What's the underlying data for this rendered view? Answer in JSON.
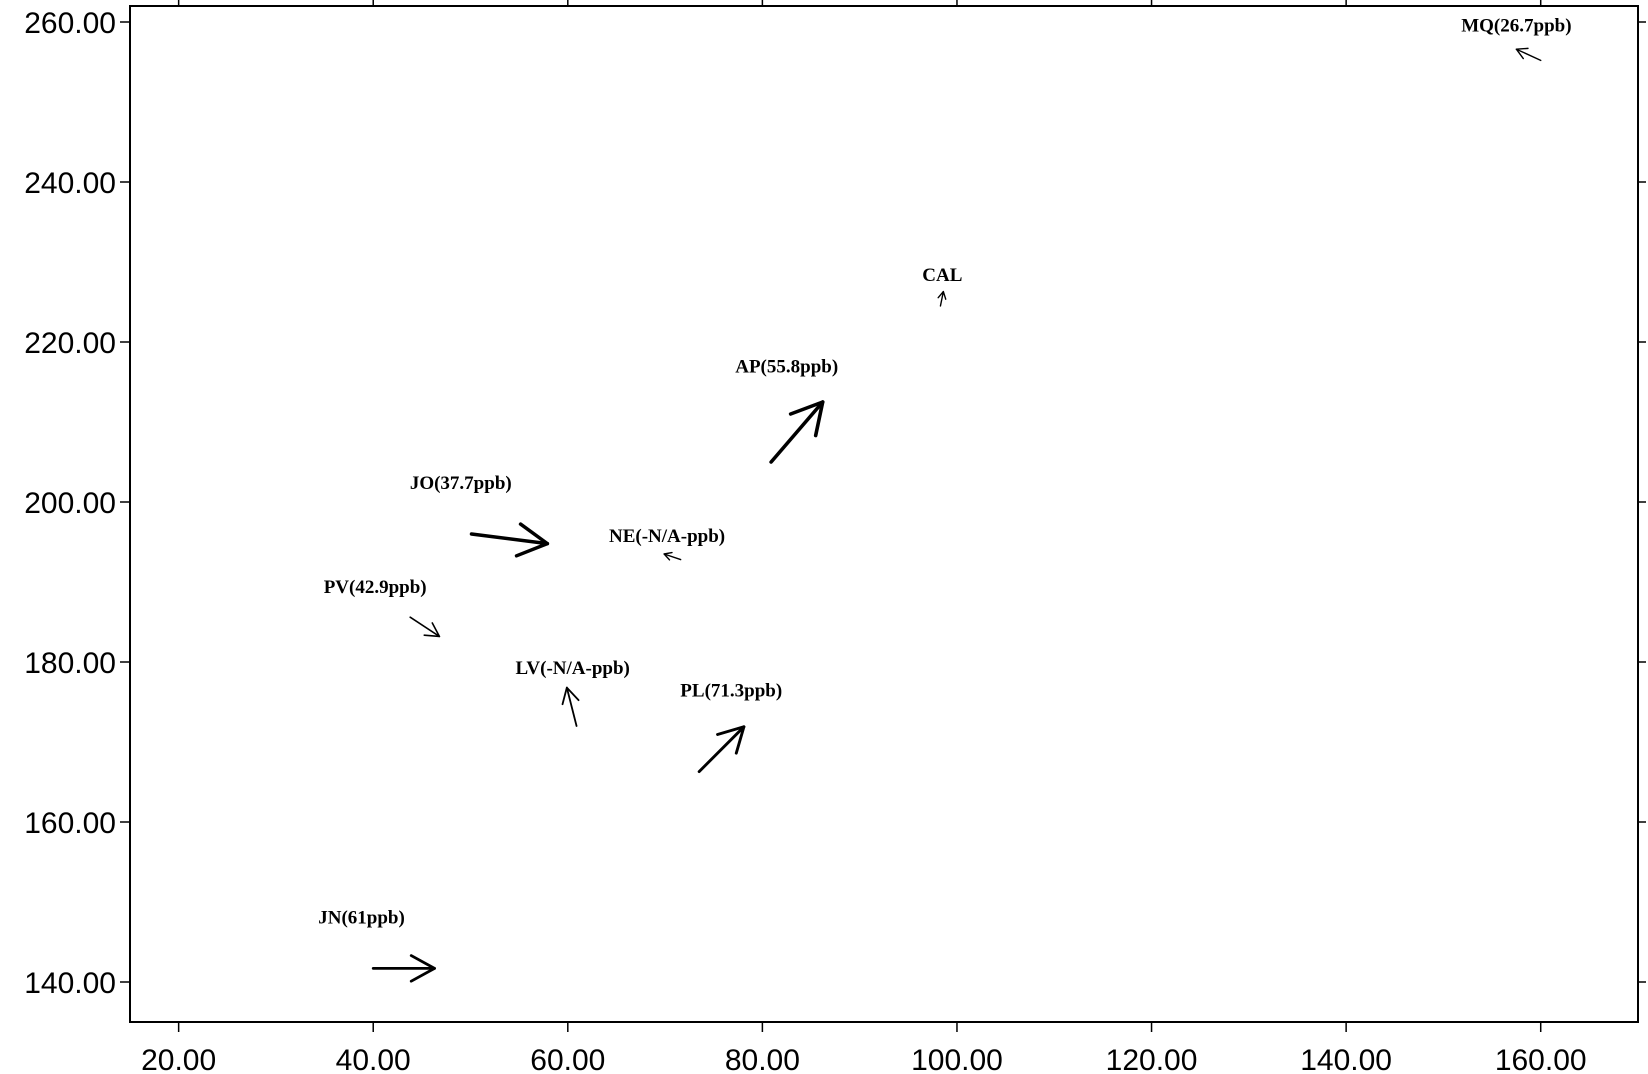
{
  "chart_data": {
    "type": "vector-field",
    "title": "",
    "xlabel": "",
    "ylabel": "",
    "xlim": [
      15,
      170
    ],
    "ylim": [
      135,
      262
    ],
    "grid": false,
    "legend": "none",
    "x_ticks": [
      "20.00",
      "40.00",
      "60.00",
      "80.00",
      "100.00",
      "120.00",
      "140.00",
      "160.00"
    ],
    "y_ticks": [
      "140.00",
      "160.00",
      "180.00",
      "200.00",
      "220.00",
      "240.00",
      "260.00"
    ],
    "x_tick_values": [
      20,
      40,
      60,
      80,
      100,
      120,
      140,
      160
    ],
    "y_tick_values": [
      140,
      160,
      180,
      200,
      220,
      240,
      260
    ],
    "stations": [
      {
        "label": "MQ(26.7ppb)",
        "label_at": [
          157.5,
          258.8
        ],
        "x0": 160,
        "y0": 255.2,
        "x1": 157.5,
        "y1": 256.6
      },
      {
        "label": "CAL",
        "label_at": [
          98.5,
          227.6
        ],
        "x0": 98.3,
        "y0": 224.5,
        "x1": 98.6,
        "y1": 226.3
      },
      {
        "label": "AP(55.8ppb)",
        "label_at": [
          82.5,
          216.2
        ],
        "x0": 80.9,
        "y0": 205.0,
        "x1": 86.2,
        "y1": 212.5
      },
      {
        "label": "JO(37.7ppb)",
        "label_at": [
          49.0,
          201.6
        ],
        "x0": 50.1,
        "y0": 196.0,
        "x1": 57.9,
        "y1": 194.8
      },
      {
        "label": "NE(-N/A-ppb)",
        "label_at": [
          70.2,
          195.0
        ],
        "x0": 71.6,
        "y0": 192.8,
        "x1": 69.9,
        "y1": 193.5
      },
      {
        "label": "PV(42.9ppb)",
        "label_at": [
          40.2,
          188.6
        ],
        "x0": 43.8,
        "y0": 185.6,
        "x1": 46.8,
        "y1": 183.2
      },
      {
        "label": "LV(-N/A-ppb)",
        "label_at": [
          60.5,
          178.5
        ],
        "x0": 60.9,
        "y0": 172.0,
        "x1": 59.9,
        "y1": 176.8
      },
      {
        "label": "PL(71.3ppb)",
        "label_at": [
          76.8,
          175.7
        ],
        "x0": 73.5,
        "y0": 166.3,
        "x1": 78.1,
        "y1": 171.9
      },
      {
        "label": "JN(61ppb)",
        "label_at": [
          38.8,
          147.3
        ],
        "x0": 40.0,
        "y0": 141.7,
        "x1": 46.3,
        "y1": 141.7
      }
    ]
  }
}
